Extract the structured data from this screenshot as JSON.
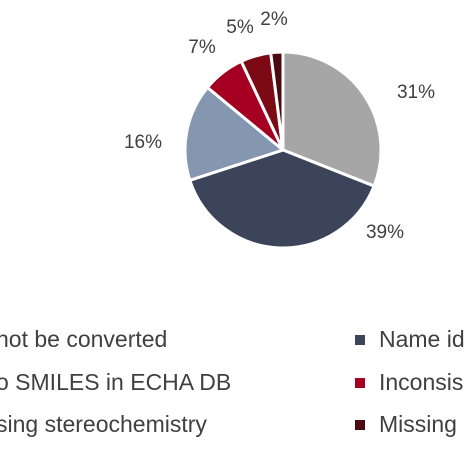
{
  "chart_data": {
    "type": "pie",
    "title": "",
    "slices": [
      {
        "label": "…not be converted",
        "value": 31,
        "display": "31%",
        "color": "#a6a6a6"
      },
      {
        "label": "Name id…",
        "value": 39,
        "display": "39%",
        "color": "#3b4458"
      },
      {
        "label": "…o SMILES in ECHA DB",
        "value": 16,
        "display": "16%",
        "color": "#8496b0"
      },
      {
        "label": "Inconsis…",
        "value": 7,
        "display": "7%",
        "color": "#a50021"
      },
      {
        "label": "…sing stereochemistry",
        "value": 5,
        "display": "5%",
        "color": "#7b0a15"
      },
      {
        "label": "Missing…",
        "value": 2,
        "display": "2%",
        "color": "#4a0a0f"
      }
    ],
    "legend": {
      "placement": "bottom",
      "entries": [
        {
          "text": "not be converted",
          "color": "#a6a6a6"
        },
        {
          "text": "Name id",
          "color": "#3b4458"
        },
        {
          "text": "o SMILES in ECHA DB",
          "color": "#8496b0"
        },
        {
          "text": "Inconsis",
          "color": "#a50021"
        },
        {
          "text": "sing stereochemistry",
          "color": "#7b0a15"
        },
        {
          "text": "Missing",
          "color": "#4a0a0f"
        }
      ]
    }
  }
}
